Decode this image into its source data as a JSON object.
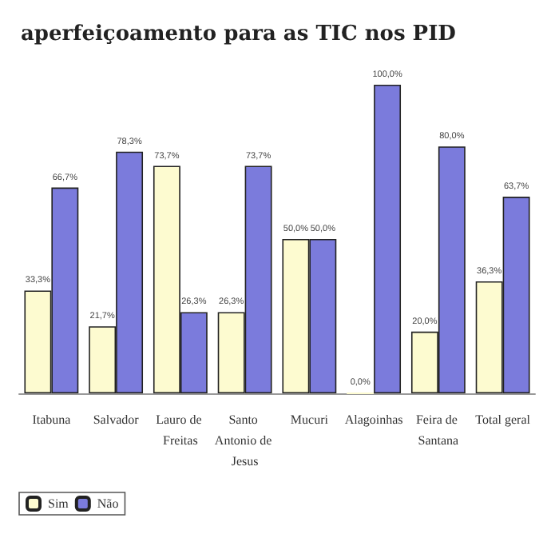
{
  "chart_data": {
    "type": "bar",
    "title": "aperfeiçoamento para as TIC nos PID",
    "categories": [
      "Itabuna",
      "Salvador",
      "Lauro de Freitas",
      "Santo Antonio de Jesus",
      "Mucuri",
      "Alagoinhas",
      "Feira de Santana",
      "Total geral"
    ],
    "series": [
      {
        "name": "Sim",
        "color": "#fdfbd0",
        "values": [
          33.3,
          21.7,
          73.7,
          26.3,
          50.0,
          0.0,
          20.0,
          36.3
        ],
        "value_labels": [
          "33,3%",
          "21,7%",
          "73,7%",
          "26,3%",
          "50,0%",
          "0,0%",
          "20,0%",
          "36,3%"
        ]
      },
      {
        "name": "Não",
        "color": "#7b7bdc",
        "values": [
          66.7,
          78.3,
          26.3,
          73.7,
          50.0,
          100.0,
          80.0,
          63.7
        ],
        "value_labels": [
          "66,7%",
          "78,3%",
          "26,3%",
          "73,7%",
          "50,0%",
          "100,0%",
          "80,0%",
          "63,7%"
        ]
      }
    ],
    "legend": "bottom left"
  }
}
